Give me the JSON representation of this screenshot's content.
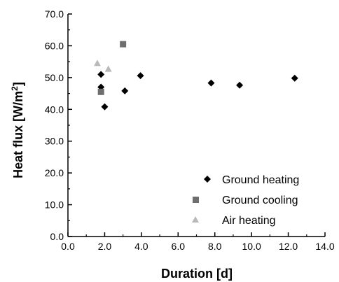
{
  "chart_data": {
    "type": "scatter",
    "xlabel": "Duration [d]",
    "ylabel_main": "Heat flux [W/m",
    "ylabel_sup": "2",
    "ylabel_end": "]",
    "xlim": [
      0,
      14
    ],
    "ylim": [
      0,
      70
    ],
    "xticks": [
      "0.0",
      "2.0",
      "4.0",
      "6.0",
      "8.0",
      "10.0",
      "12.0",
      "14.0"
    ],
    "yticks": [
      "0.0",
      "10.0",
      "20.0",
      "30.0",
      "40.0",
      "50.0",
      "60.0",
      "70.0"
    ],
    "grid": false,
    "legend_position": "bottom-right",
    "series": [
      {
        "name": "Ground heating",
        "marker": "diamond",
        "color": "#000000",
        "points": [
          {
            "x": 1.8,
            "y": 51.0
          },
          {
            "x": 1.8,
            "y": 47.0
          },
          {
            "x": 2.0,
            "y": 40.8
          },
          {
            "x": 3.1,
            "y": 45.8
          },
          {
            "x": 3.95,
            "y": 50.6
          },
          {
            "x": 7.8,
            "y": 48.3
          },
          {
            "x": 9.35,
            "y": 47.6
          },
          {
            "x": 12.35,
            "y": 49.8
          }
        ]
      },
      {
        "name": "Ground cooling",
        "marker": "square",
        "color": "#6e6e6e",
        "points": [
          {
            "x": 1.8,
            "y": 45.5
          },
          {
            "x": 3.0,
            "y": 60.5
          }
        ]
      },
      {
        "name": "Air heating",
        "marker": "triangle",
        "color": "#b9b9b9",
        "points": [
          {
            "x": 1.6,
            "y": 54.5
          },
          {
            "x": 2.2,
            "y": 52.7
          }
        ]
      }
    ]
  }
}
